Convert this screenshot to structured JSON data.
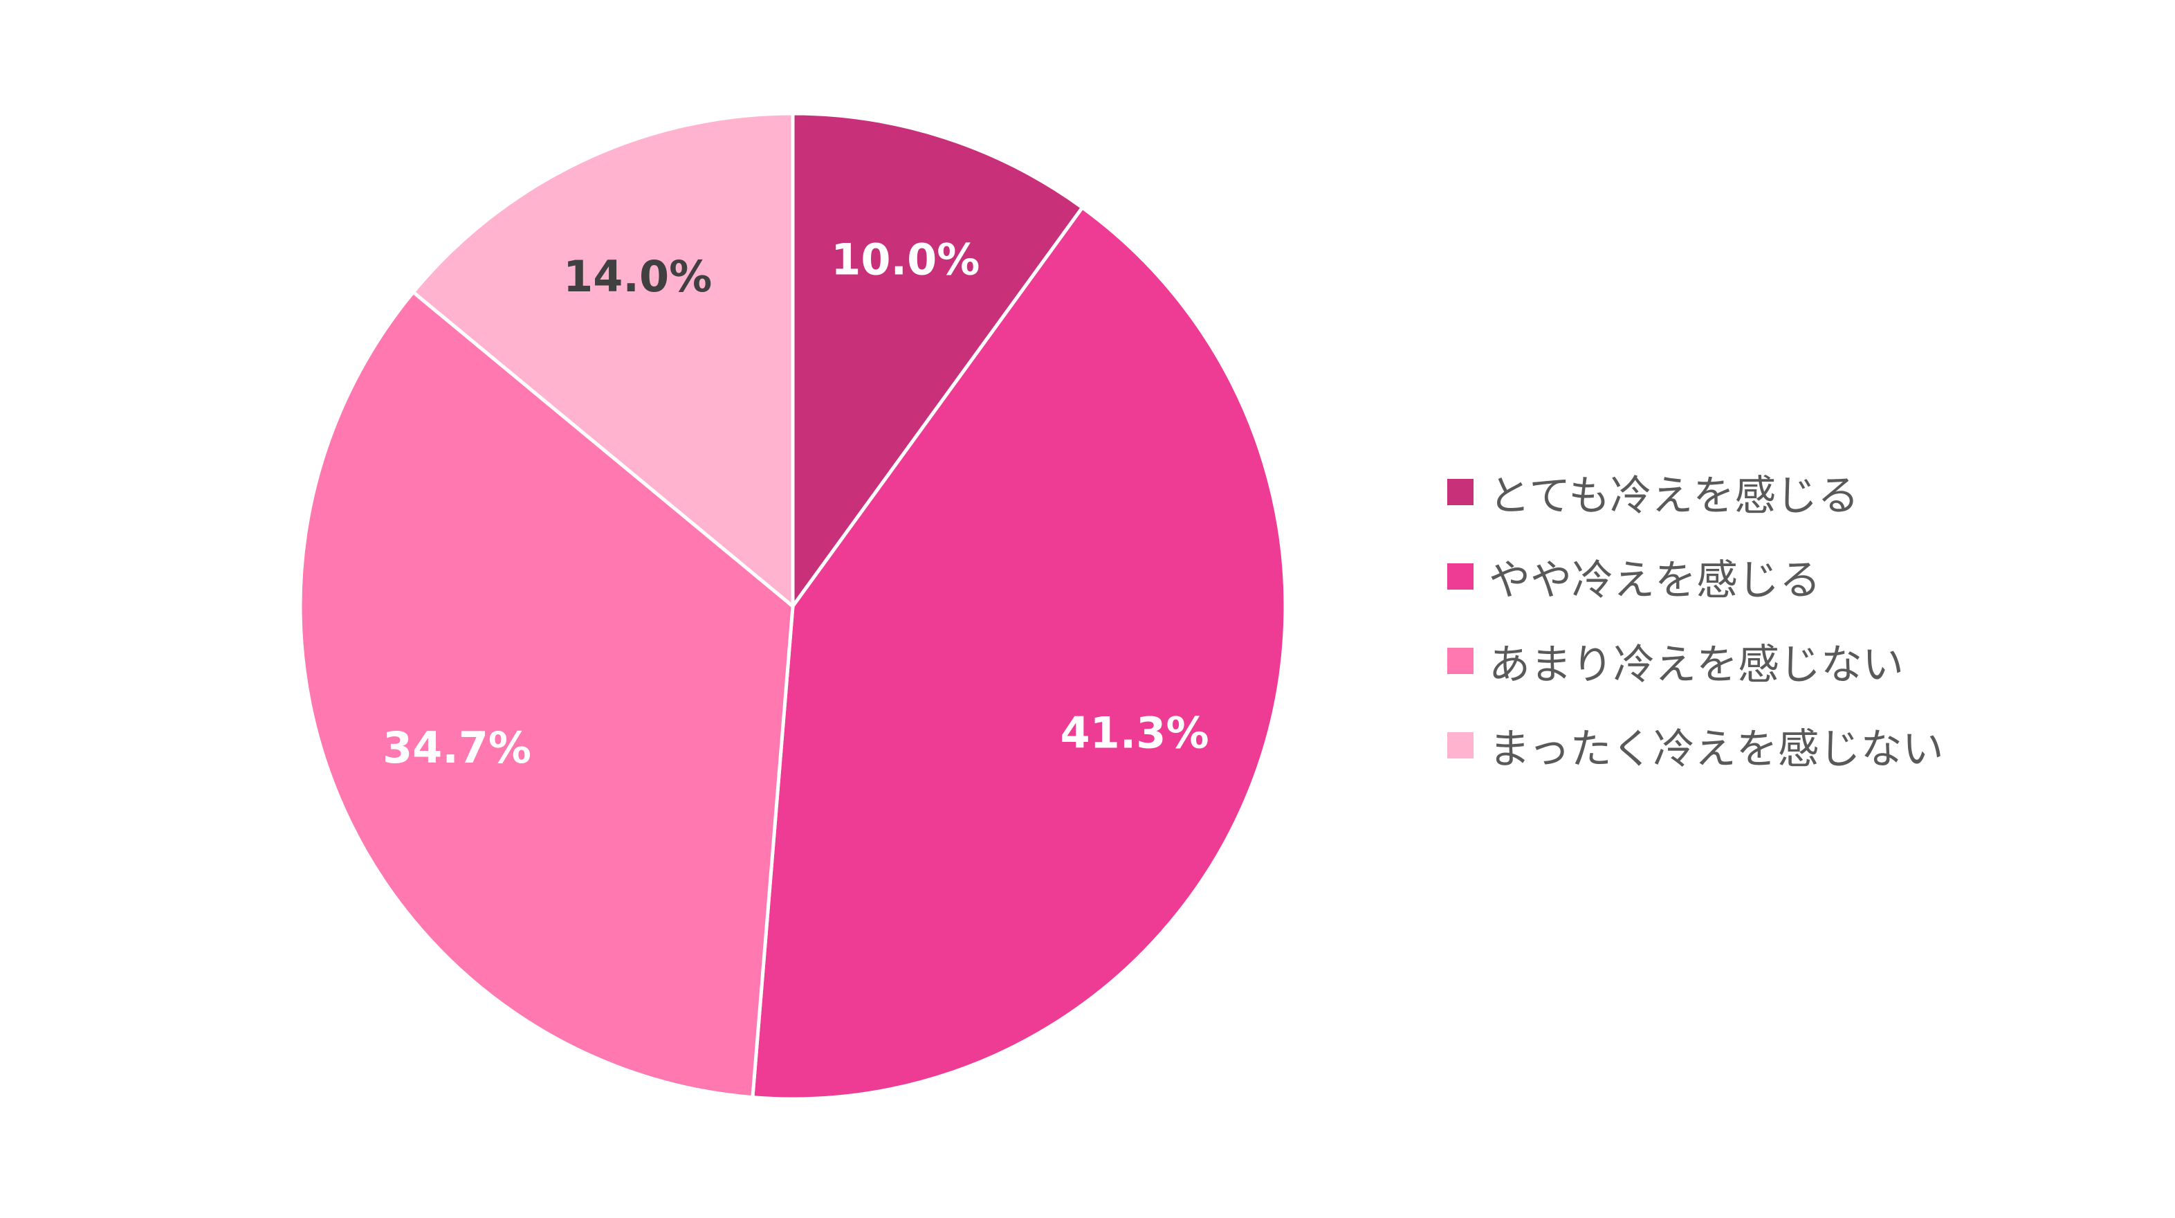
{
  "chart_data": {
    "type": "pie",
    "categories": [
      "とても冷えを感じる",
      "やや冷えを感じる",
      "あまり冷えを感じない",
      "まったく冷えを感じない"
    ],
    "values": [
      10.0,
      41.3,
      34.7,
      14.0
    ],
    "data_labels": [
      "10.0%",
      "41.3%",
      "34.7%",
      "14.0%"
    ],
    "colors": [
      "#C8307A",
      "#EE3C94",
      "#FF79B0",
      "#FFB3CE"
    ],
    "label_colors": [
      "#FFFFFF",
      "#FFFFFF",
      "#FFFFFF",
      "#404040"
    ],
    "start_angle_deg": 0,
    "direction": "clockwise",
    "legend_position": "right"
  },
  "legend": {
    "items": [
      {
        "label": "とても冷えを感じる",
        "color": "#C8307A"
      },
      {
        "label": "やや冷えを感じる",
        "color": "#EE3C94"
      },
      {
        "label": "あまり冷えを感じない",
        "color": "#FF79B0"
      },
      {
        "label": "まったく冷えを感じない",
        "color": "#FFB3CE"
      }
    ]
  }
}
